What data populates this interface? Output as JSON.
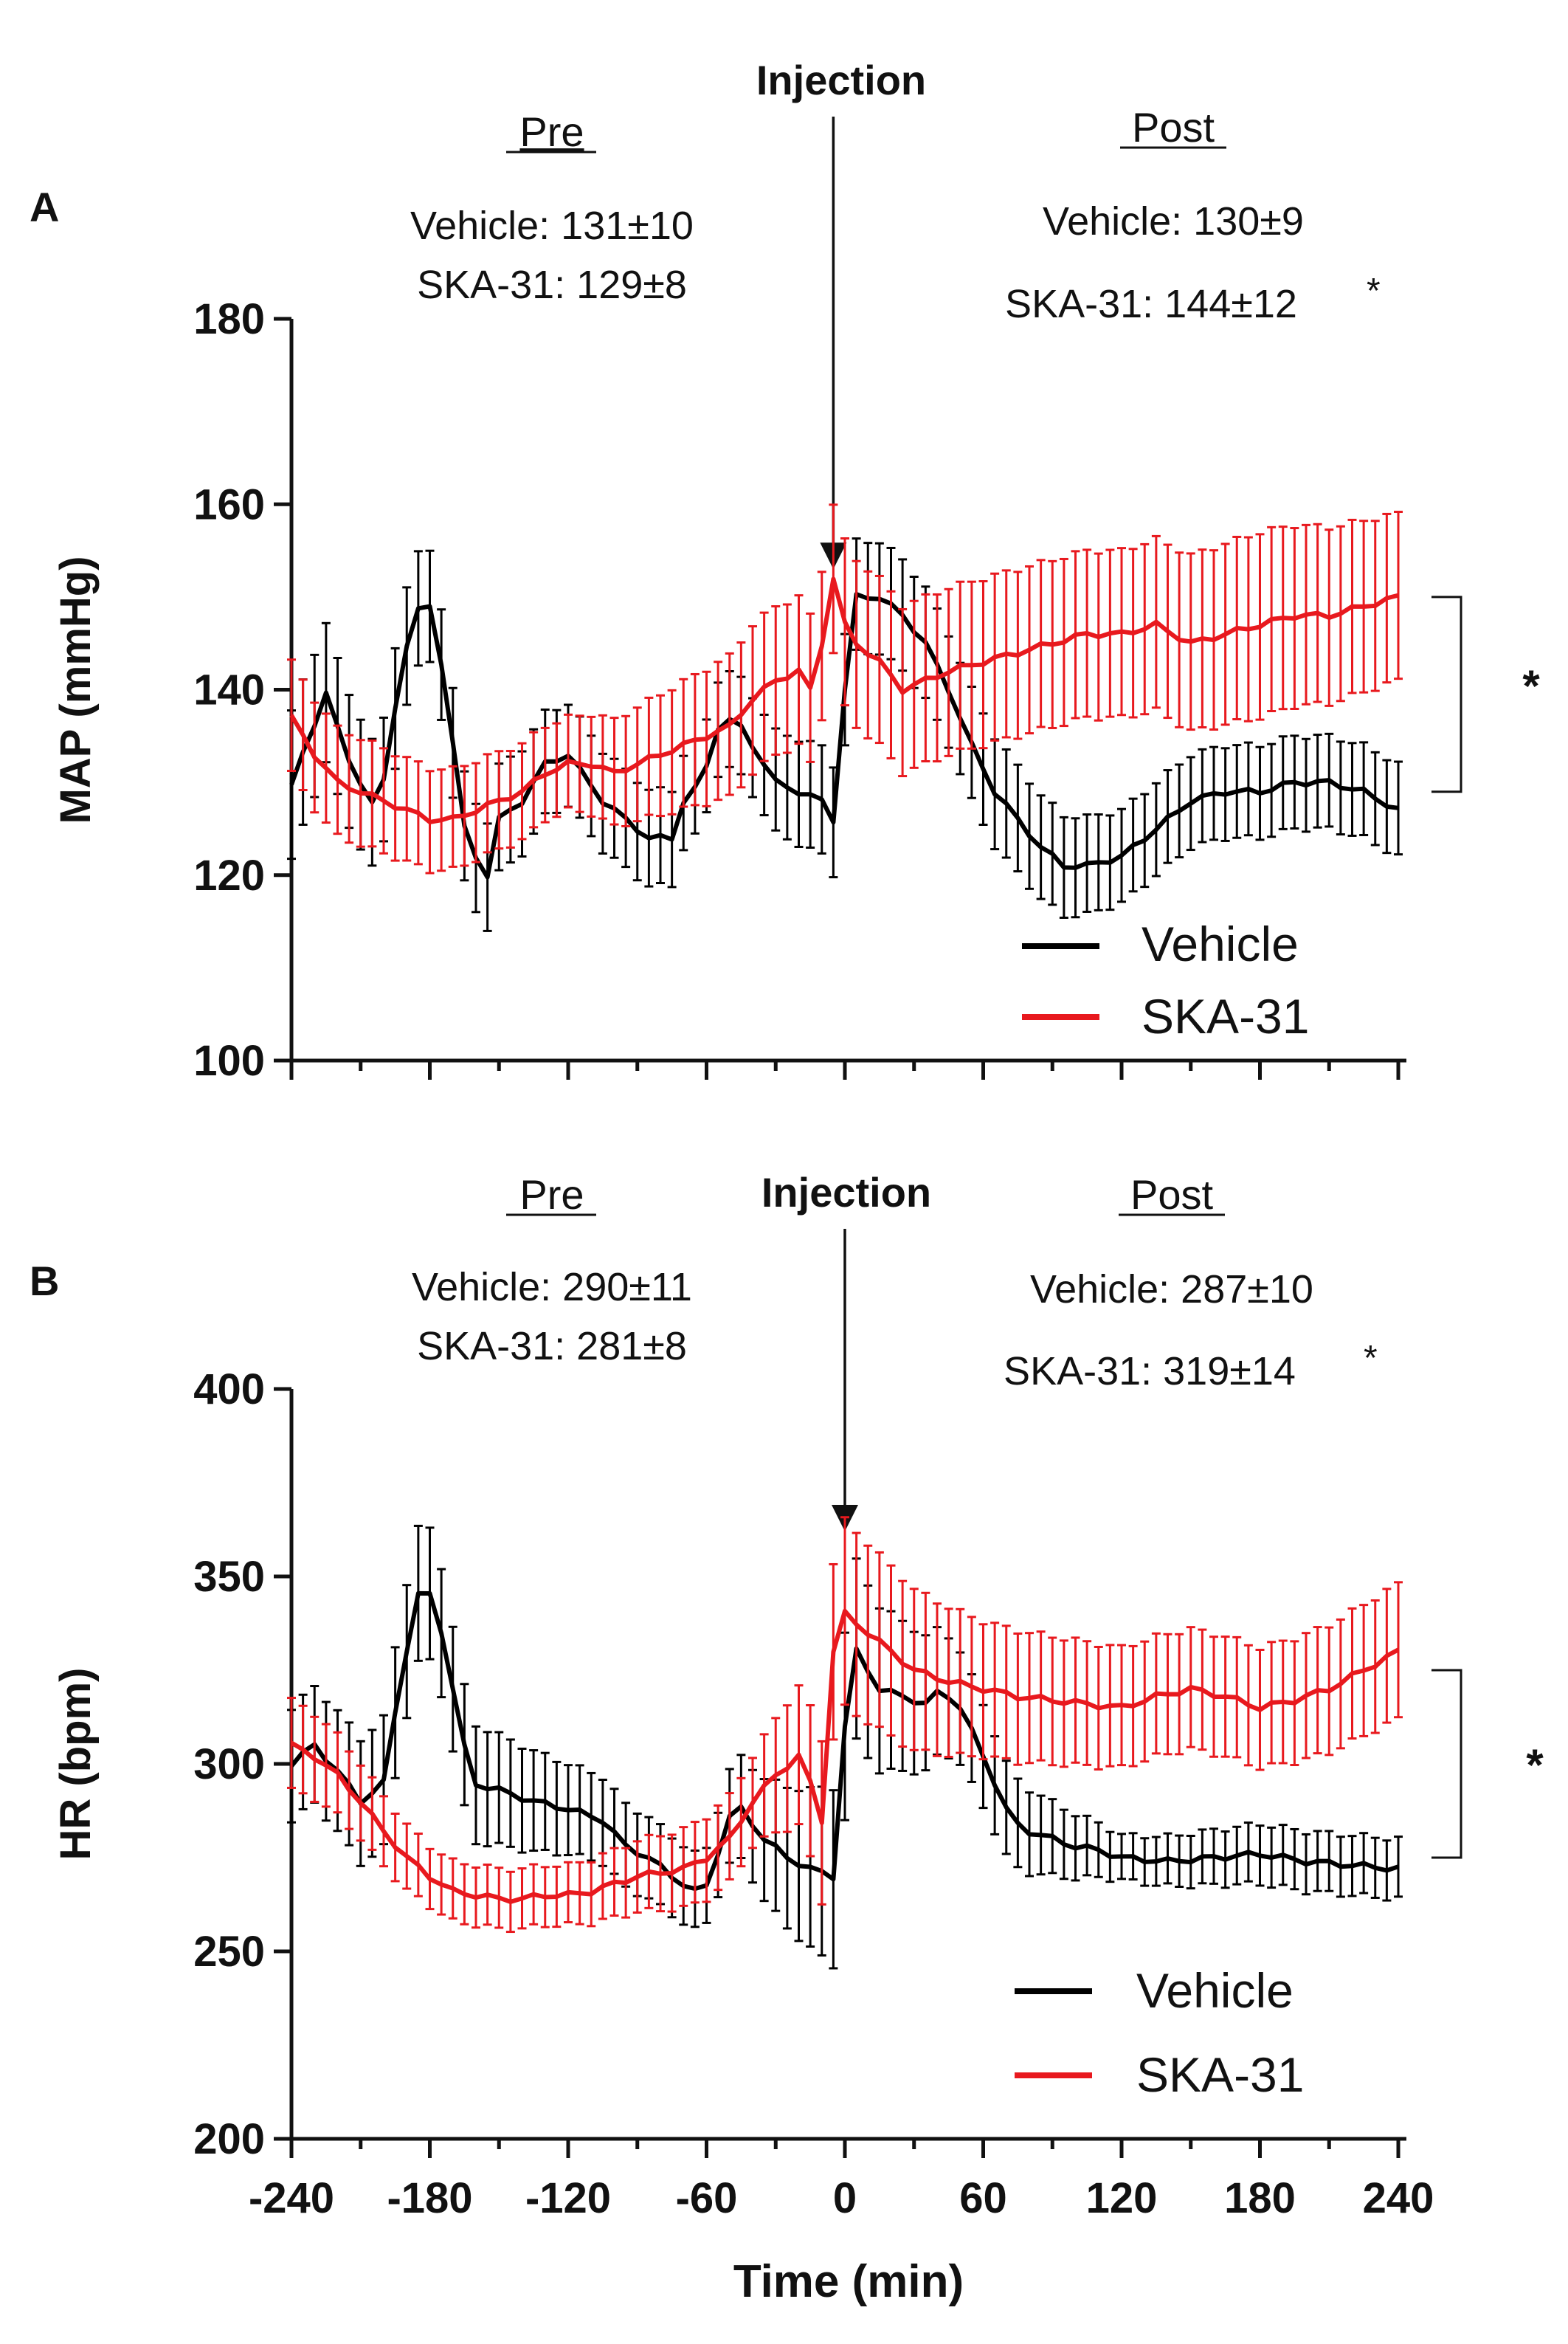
{
  "figure": {
    "x_axis_label": "Time (min)",
    "series_names": [
      "Vehicle",
      "SKA-31"
    ],
    "colors": {
      "Vehicle": "#000000",
      "SKA-31": "#e8191e"
    }
  },
  "chart_data": [
    {
      "type": "line",
      "panel_label": "A",
      "ylabel": "MAP (mmHg)",
      "xlabel": "",
      "xlim": [
        -240,
        240
      ],
      "ylim": [
        100,
        180
      ],
      "y_ticks": [
        100,
        120,
        140,
        160,
        180
      ],
      "x_ticks": [
        -240,
        -180,
        -120,
        -60,
        0,
        60,
        120,
        180,
        240
      ],
      "injection_label": "Injection",
      "injection_x": -5,
      "injection_y": 153,
      "pre": {
        "heading": "Pre",
        "vehicle": "Vehicle: 131±10",
        "ska31": "SKA-31: 129±8"
      },
      "post": {
        "heading": "Post",
        "vehicle": "Vehicle: 130±9",
        "ska31": "SKA-31: 144±12",
        "ska31_star": "*"
      },
      "significance": {
        "symbol": "*",
        "y_top": 150,
        "y_bottom": 129
      },
      "legend": [
        "Vehicle",
        "SKA-31"
      ],
      "series": [
        {
          "name": "Vehicle",
          "keypoints": [
            [
              -240,
              130
            ],
            [
              -230,
              136
            ],
            [
              -225,
              140
            ],
            [
              -215,
              132
            ],
            [
              -205,
              128
            ],
            [
              -200,
              130
            ],
            [
              -195,
              138
            ],
            [
              -190,
              145
            ],
            [
              -183,
              150
            ],
            [
              -178,
              148
            ],
            [
              -172,
              138
            ],
            [
              -165,
              125
            ],
            [
              -160,
              122
            ],
            [
              -155,
              120
            ],
            [
              -150,
              126
            ],
            [
              -140,
              128
            ],
            [
              -130,
              132
            ],
            [
              -120,
              133
            ],
            [
              -105,
              128
            ],
            [
              -95,
              126
            ],
            [
              -85,
              124
            ],
            [
              -75,
              124
            ],
            [
              -70,
              128
            ],
            [
              -62,
              130
            ],
            [
              -55,
              136
            ],
            [
              -48,
              137
            ],
            [
              -40,
              134
            ],
            [
              -30,
              130
            ],
            [
              -20,
              129
            ],
            [
              -10,
              128
            ],
            [
              -5,
              126
            ],
            [
              0,
              140
            ],
            [
              5,
              150
            ],
            [
              15,
              150
            ],
            [
              25,
              148
            ],
            [
              35,
              145
            ],
            [
              45,
              140
            ],
            [
              55,
              134
            ],
            [
              65,
              129
            ],
            [
              75,
              126
            ],
            [
              85,
              123
            ],
            [
              95,
              121
            ],
            [
              105,
              121
            ],
            [
              120,
              122
            ],
            [
              130,
              124
            ],
            [
              140,
              126
            ],
            [
              150,
              128
            ],
            [
              165,
              129
            ],
            [
              180,
              129
            ],
            [
              195,
              130
            ],
            [
              210,
              130
            ],
            [
              225,
              129
            ],
            [
              240,
              127
            ]
          ],
          "errors": [
            [
              -240,
              8
            ],
            [
              -180,
              6
            ],
            [
              -60,
              5
            ],
            [
              0,
              6
            ],
            [
              60,
              6
            ],
            [
              120,
              5
            ],
            [
              240,
              5
            ]
          ]
        },
        {
          "name": "SKA-31",
          "keypoints": [
            [
              -240,
              137
            ],
            [
              -230,
              133
            ],
            [
              -220,
              130
            ],
            [
              -210,
              129
            ],
            [
              -200,
              128
            ],
            [
              -190,
              127
            ],
            [
              -180,
              126
            ],
            [
              -170,
              126
            ],
            [
              -160,
              127
            ],
            [
              -150,
              128
            ],
            [
              -140,
              129
            ],
            [
              -130,
              131
            ],
            [
              -120,
              132
            ],
            [
              -110,
              132
            ],
            [
              -100,
              131
            ],
            [
              -90,
              132
            ],
            [
              -80,
              133
            ],
            [
              -70,
              134
            ],
            [
              -60,
              135
            ],
            [
              -50,
              136
            ],
            [
              -40,
              139
            ],
            [
              -30,
              141
            ],
            [
              -20,
              142
            ],
            [
              -15,
              140
            ],
            [
              -10,
              145
            ],
            [
              -5,
              152
            ],
            [
              0,
              147
            ],
            [
              5,
              145
            ],
            [
              15,
              143
            ],
            [
              25,
              140
            ],
            [
              35,
              141
            ],
            [
              45,
              142
            ],
            [
              60,
              143
            ],
            [
              75,
              144
            ],
            [
              90,
              145
            ],
            [
              105,
              146
            ],
            [
              120,
              146
            ],
            [
              135,
              147
            ],
            [
              150,
              145
            ],
            [
              165,
              146
            ],
            [
              180,
              147
            ],
            [
              195,
              148
            ],
            [
              210,
              148
            ],
            [
              225,
              149
            ],
            [
              240,
              150
            ]
          ],
          "errors": [
            [
              -240,
              6
            ],
            [
              -120,
              5
            ],
            [
              -40,
              8
            ],
            [
              -5,
              8
            ],
            [
              0,
              9
            ],
            [
              60,
              9
            ],
            [
              120,
              9
            ],
            [
              180,
              10
            ],
            [
              240,
              9
            ]
          ]
        }
      ]
    },
    {
      "type": "line",
      "panel_label": "B",
      "ylabel": "HR (bpm)",
      "xlabel": "Time (min)",
      "xlim": [
        -240,
        240
      ],
      "ylim": [
        200,
        400
      ],
      "y_ticks": [
        200,
        250,
        300,
        350,
        400
      ],
      "x_ticks": [
        -240,
        -180,
        -120,
        -60,
        0,
        60,
        120,
        180,
        240
      ],
      "x_tick_labels": [
        "-240",
        "-180",
        "-120",
        "-60",
        "0",
        "60",
        "120",
        "180",
        "240"
      ],
      "injection_label": "Injection",
      "injection_x": 0,
      "injection_y": 362,
      "pre": {
        "heading": "Pre",
        "vehicle": "Vehicle: 290±11",
        "ska31": "SKA-31: 281±8"
      },
      "post": {
        "heading": "Post",
        "vehicle": "Vehicle: 287±10",
        "ska31": "SKA-31: 319±14",
        "ska31_star": "*"
      },
      "significance": {
        "symbol": "*",
        "y_top": 325,
        "y_bottom": 275
      },
      "legend": [
        "Vehicle",
        "SKA-31"
      ],
      "series": [
        {
          "name": "Vehicle",
          "keypoints": [
            [
              -240,
              300
            ],
            [
              -230,
              305
            ],
            [
              -220,
              298
            ],
            [
              -210,
              290
            ],
            [
              -200,
              295
            ],
            [
              -192,
              325
            ],
            [
              -185,
              345
            ],
            [
              -178,
              345
            ],
            [
              -170,
              320
            ],
            [
              -162,
              295
            ],
            [
              -150,
              293
            ],
            [
              -135,
              290
            ],
            [
              -120,
              288
            ],
            [
              -105,
              285
            ],
            [
              -95,
              278
            ],
            [
              -85,
              275
            ],
            [
              -75,
              270
            ],
            [
              -65,
              266
            ],
            [
              -58,
              268
            ],
            [
              -52,
              285
            ],
            [
              -45,
              288
            ],
            [
              -35,
              280
            ],
            [
              -25,
              275
            ],
            [
              -15,
              272
            ],
            [
              -5,
              270
            ],
            [
              0,
              310
            ],
            [
              5,
              330
            ],
            [
              15,
              320
            ],
            [
              25,
              318
            ],
            [
              35,
              316
            ],
            [
              42,
              320
            ],
            [
              50,
              315
            ],
            [
              58,
              305
            ],
            [
              65,
              295
            ],
            [
              72,
              285
            ],
            [
              80,
              282
            ],
            [
              90,
              280
            ],
            [
              100,
              278
            ],
            [
              110,
              277
            ],
            [
              120,
              275
            ],
            [
              140,
              274
            ],
            [
              160,
              275
            ],
            [
              180,
              276
            ],
            [
              200,
              274
            ],
            [
              220,
              273
            ],
            [
              240,
              272
            ]
          ],
          "errors": [
            [
              -240,
              15
            ],
            [
              -185,
              18
            ],
            [
              -120,
              12
            ],
            [
              -60,
              10
            ],
            [
              0,
              25
            ],
            [
              50,
              15
            ],
            [
              120,
              6
            ],
            [
              180,
              8
            ],
            [
              240,
              8
            ]
          ]
        },
        {
          "name": "SKA-31",
          "keypoints": [
            [
              -240,
              305
            ],
            [
              -230,
              302
            ],
            [
              -220,
              297
            ],
            [
              -210,
              290
            ],
            [
              -200,
              282
            ],
            [
              -190,
              275
            ],
            [
              -180,
              270
            ],
            [
              -170,
              266
            ],
            [
              -160,
              265
            ],
            [
              -150,
              264
            ],
            [
              -140,
              264
            ],
            [
              -130,
              265
            ],
            [
              -120,
              265
            ],
            [
              -110,
              266
            ],
            [
              -100,
              268
            ],
            [
              -90,
              270
            ],
            [
              -80,
              271
            ],
            [
              -70,
              272
            ],
            [
              -60,
              275
            ],
            [
              -50,
              280
            ],
            [
              -40,
              290
            ],
            [
              -30,
              297
            ],
            [
              -20,
              302
            ],
            [
              -15,
              295
            ],
            [
              -10,
              285
            ],
            [
              -5,
              330
            ],
            [
              0,
              340
            ],
            [
              10,
              335
            ],
            [
              20,
              330
            ],
            [
              30,
              325
            ],
            [
              45,
              322
            ],
            [
              60,
              320
            ],
            [
              75,
              318
            ],
            [
              90,
              317
            ],
            [
              105,
              316
            ],
            [
              120,
              315
            ],
            [
              135,
              318
            ],
            [
              150,
              320
            ],
            [
              165,
              318
            ],
            [
              180,
              315
            ],
            [
              195,
              317
            ],
            [
              210,
              320
            ],
            [
              225,
              325
            ],
            [
              240,
              330
            ]
          ],
          "errors": [
            [
              -240,
              12
            ],
            [
              -180,
              8
            ],
            [
              -120,
              8
            ],
            [
              -40,
              12
            ],
            [
              0,
              25
            ],
            [
              60,
              18
            ],
            [
              120,
              16
            ],
            [
              180,
              16
            ],
            [
              240,
              18
            ]
          ]
        }
      ]
    }
  ]
}
